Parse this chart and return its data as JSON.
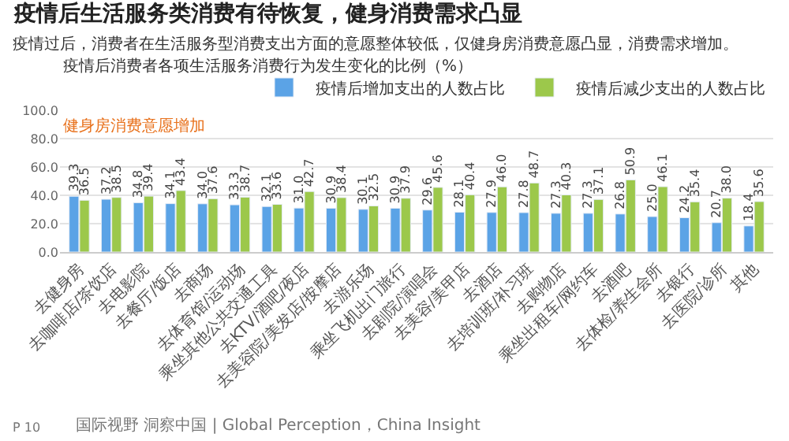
{
  "chart_data": {
    "type": "bar",
    "title": "疫情后生活服务类消费有待恢复，健身消费需求凸显",
    "subtitle": "疫情过后，消费者在生活服务型消费支出方面的意愿整体较低，仅健身房消费意愿凸显，消费需求增加。",
    "annotations": [
      "疫情后消费者各项生活服务消费行为发生变化的比例（%）",
      "健身房消费意愿增加",
      "P 10",
      "国际视野 洞察中国 | Global Perception，China Insight"
    ],
    "categories": [
      "去健身房",
      "去咖啡店/茶饮店",
      "去电影院",
      "去餐厅/饭店",
      "去商场",
      "去体育馆/运动场",
      "乘坐其他公共交通工具",
      "去KTV/酒吧/夜店",
      "去美容院/美发店/按摩店",
      "去游乐场",
      "乘坐飞机出门旅行",
      "去剧院/演唱会",
      "去美容/美甲店",
      "去酒店",
      "去培训班/补习班",
      "去购物店",
      "乘坐出租车/网约车",
      "去酒吧",
      "去体检/养生会所",
      "去银行",
      "去医院/诊所",
      "其他"
    ],
    "series": [
      {
        "name": "疫情后增加支出的人数占比",
        "color": "#5ba3e6",
        "values": [
          39.3,
          37.2,
          34.8,
          34.1,
          34.0,
          33.3,
          32.1,
          31.0,
          30.9,
          30.1,
          30.9,
          29.6,
          28.1,
          27.9,
          27.8,
          27.3,
          27.3,
          26.8,
          25.0,
          24.2,
          20.7,
          18.4
        ],
        "value_labels": [
          "39.3",
          "37.2",
          "34.8",
          "34.1",
          "34.0",
          "33.3",
          "32.1",
          "31.0",
          "30.9",
          "30.1",
          "30.9",
          "29.6",
          "28.1",
          "27.9",
          "27.8",
          "27.3",
          "27.3",
          "26.8",
          "25.0",
          "24.2",
          "20.7",
          "18.4"
        ]
      },
      {
        "name": "疫情后减少支出的人数占比",
        "color": "#9cc84b",
        "values": [
          36.5,
          38.5,
          39.4,
          43.4,
          37.6,
          38.7,
          33.6,
          42.7,
          38.4,
          32.5,
          37.9,
          45.6,
          40.4,
          46.0,
          48.7,
          40.3,
          37.1,
          50.9,
          46.1,
          35.4,
          38.0,
          35.6
        ],
        "value_labels": [
          "36.5",
          "38.5",
          "39.4",
          "43.4",
          "37.6",
          "38.7",
          "33.6",
          "42.7",
          "38.4",
          "32.5",
          "37.9",
          "45.6",
          "40.4",
          "46.0",
          "48.7",
          "40.3",
          "37.1",
          "50.9",
          "46.1",
          "35.4",
          "38.0",
          "35.6"
        ]
      }
    ],
    "ylim": [
      0,
      100
    ],
    "yticks": [
      {
        "value": 0,
        "label": "0.0"
      },
      {
        "value": 20,
        "label": "20.0"
      },
      {
        "value": 40,
        "label": "40.0"
      },
      {
        "value": 60,
        "label": "60.0"
      },
      {
        "value": 80,
        "label": "80.0"
      },
      {
        "value": 100,
        "label": "100.0"
      }
    ],
    "grid": "y",
    "legend": "top right"
  }
}
